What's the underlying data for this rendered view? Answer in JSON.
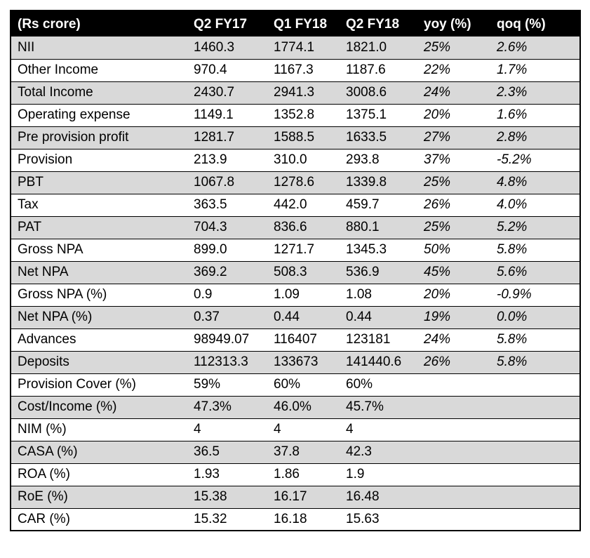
{
  "table": {
    "headers": [
      "(Rs crore)",
      "Q2 FY17",
      "Q1 FY18",
      "Q2 FY18",
      "yoy (%)",
      "qoq (%)"
    ],
    "rows": [
      {
        "label": "NII",
        "q2fy17": "1460.3",
        "q1fy18": "1774.1",
        "q2fy18": "1821.0",
        "yoy": "25%",
        "qoq": "2.6%",
        "shaded": true
      },
      {
        "label": "Other Income",
        "q2fy17": "970.4",
        "q1fy18": "1167.3",
        "q2fy18": "1187.6",
        "yoy": "22%",
        "qoq": "1.7%",
        "shaded": false
      },
      {
        "label": "Total Income",
        "q2fy17": "2430.7",
        "q1fy18": "2941.3",
        "q2fy18": "3008.6",
        "yoy": "24%",
        "qoq": "2.3%",
        "shaded": true
      },
      {
        "label": "Operating expense",
        "q2fy17": "1149.1",
        "q1fy18": "1352.8",
        "q2fy18": "1375.1",
        "yoy": "20%",
        "qoq": "1.6%",
        "shaded": false
      },
      {
        "label": "Pre provision profit",
        "q2fy17": "1281.7",
        "q1fy18": "1588.5",
        "q2fy18": "1633.5",
        "yoy": "27%",
        "qoq": "2.8%",
        "shaded": true
      },
      {
        "label": "Provision",
        "q2fy17": "213.9",
        "q1fy18": "310.0",
        "q2fy18": "293.8",
        "yoy": "37%",
        "qoq": "-5.2%",
        "shaded": false
      },
      {
        "label": "PBT",
        "q2fy17": "1067.8",
        "q1fy18": "1278.6",
        "q2fy18": "1339.8",
        "yoy": "25%",
        "qoq": "4.8%",
        "shaded": true
      },
      {
        "label": "Tax",
        "q2fy17": "363.5",
        "q1fy18": "442.0",
        "q2fy18": "459.7",
        "yoy": "26%",
        "qoq": "4.0%",
        "shaded": false
      },
      {
        "label": "PAT",
        "q2fy17": "704.3",
        "q1fy18": "836.6",
        "q2fy18": "880.1",
        "yoy": "25%",
        "qoq": "5.2%",
        "shaded": true
      },
      {
        "label": "Gross NPA",
        "q2fy17": "899.0",
        "q1fy18": "1271.7",
        "q2fy18": "1345.3",
        "yoy": "50%",
        "qoq": "5.8%",
        "shaded": false
      },
      {
        "label": "Net NPA",
        "q2fy17": "369.2",
        "q1fy18": "508.3",
        "q2fy18": "536.9",
        "yoy": "45%",
        "qoq": "5.6%",
        "shaded": true
      },
      {
        "label": "Gross NPA (%)",
        "q2fy17": "0.9",
        "q1fy18": "1.09",
        "q2fy18": "1.08",
        "yoy": "20%",
        "qoq": "-0.9%",
        "shaded": false
      },
      {
        "label": "Net NPA (%)",
        "q2fy17": "0.37",
        "q1fy18": "0.44",
        "q2fy18": "0.44",
        "yoy": "19%",
        "qoq": "0.0%",
        "shaded": true
      },
      {
        "label": "Advances",
        "q2fy17": "98949.07",
        "q1fy18": "116407",
        "q2fy18": "123181",
        "yoy": "24%",
        "qoq": "5.8%",
        "shaded": false
      },
      {
        "label": "Deposits",
        "q2fy17": "112313.3",
        "q1fy18": "133673",
        "q2fy18": "141440.6",
        "yoy": "26%",
        "qoq": "5.8%",
        "shaded": true
      },
      {
        "label": "Provision Cover (%)",
        "q2fy17": "59%",
        "q1fy18": "60%",
        "q2fy18": "60%",
        "yoy": "",
        "qoq": "",
        "shaded": false
      },
      {
        "label": "Cost/Income (%)",
        "q2fy17": "47.3%",
        "q1fy18": "46.0%",
        "q2fy18": "45.7%",
        "yoy": "",
        "qoq": "",
        "shaded": true
      },
      {
        "label": "NIM (%)",
        "q2fy17": "4",
        "q1fy18": "4",
        "q2fy18": "4",
        "yoy": "",
        "qoq": "",
        "shaded": false
      },
      {
        "label": "CASA (%)",
        "q2fy17": "36.5",
        "q1fy18": "37.8",
        "q2fy18": "42.3",
        "yoy": "",
        "qoq": "",
        "shaded": true
      },
      {
        "label": "ROA (%)",
        "q2fy17": "1.93",
        "q1fy18": "1.86",
        "q2fy18": "1.9",
        "yoy": "",
        "qoq": "",
        "shaded": false
      },
      {
        "label": "RoE (%)",
        "q2fy17": "15.38",
        "q1fy18": "16.17",
        "q2fy18": "16.48",
        "yoy": "",
        "qoq": "",
        "shaded": true
      },
      {
        "label": "CAR (%)",
        "q2fy17": "15.32",
        "q1fy18": "16.18",
        "q2fy18": "15.63",
        "yoy": "",
        "qoq": "",
        "shaded": false
      }
    ]
  }
}
